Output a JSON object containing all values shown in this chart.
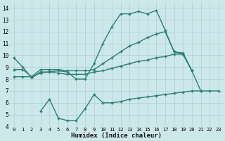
{
  "line1_x": [
    0,
    1,
    2,
    3,
    4,
    5,
    6,
    7,
    8,
    9,
    10,
    11,
    12,
    13,
    14,
    15,
    16,
    17,
    18,
    19,
    20,
    21
  ],
  "line1_y": [
    9.8,
    9.0,
    8.1,
    8.6,
    8.6,
    8.7,
    8.6,
    8.0,
    8.0,
    9.3,
    11.0,
    12.4,
    13.5,
    13.5,
    13.7,
    13.5,
    13.8,
    12.1,
    10.3,
    10.2,
    8.7,
    7.0
  ],
  "line2_x": [
    0,
    1,
    2,
    3,
    4,
    5,
    6,
    7,
    8,
    9,
    10,
    11,
    12,
    13,
    14,
    15,
    16,
    17,
    18,
    19,
    20
  ],
  "line2_y": [
    8.8,
    8.8,
    8.2,
    8.8,
    8.8,
    8.8,
    8.7,
    8.7,
    8.7,
    8.8,
    9.3,
    9.8,
    10.3,
    10.8,
    11.1,
    11.5,
    11.8,
    12.0,
    10.3,
    10.1,
    8.7
  ],
  "line3_x": [
    0,
    1,
    2,
    3,
    4,
    5,
    6,
    7,
    8,
    9,
    10,
    11,
    12,
    13,
    14,
    15,
    16,
    17,
    18,
    19,
    20
  ],
  "line3_y": [
    8.2,
    8.2,
    8.2,
    8.5,
    8.6,
    8.5,
    8.4,
    8.4,
    8.4,
    8.6,
    8.7,
    8.9,
    9.1,
    9.3,
    9.5,
    9.6,
    9.8,
    9.9,
    10.1,
    10.1,
    8.7
  ],
  "line4_x": [
    3,
    4,
    5,
    6,
    7,
    8,
    9,
    10,
    11,
    12,
    13,
    14,
    15,
    16,
    17,
    18,
    19,
    20,
    21,
    22,
    23
  ],
  "line4_y": [
    5.3,
    6.3,
    4.7,
    4.5,
    4.5,
    5.5,
    6.7,
    6.0,
    6.0,
    6.1,
    6.3,
    6.4,
    6.5,
    6.6,
    6.7,
    6.8,
    6.9,
    7.0,
    7.0,
    7.0,
    7.0
  ],
  "color": "#2d7d78",
  "bg_color": "#cde8eb",
  "grid_color": "#aecfd3",
  "xlabel": "Humidex (Indice chaleur)",
  "xlim": [
    -0.5,
    23.5
  ],
  "ylim": [
    4,
    14.5
  ],
  "yticks": [
    4,
    5,
    6,
    7,
    8,
    9,
    10,
    11,
    12,
    13,
    14
  ],
  "xticks": [
    0,
    1,
    2,
    3,
    4,
    5,
    6,
    7,
    8,
    9,
    10,
    11,
    12,
    13,
    14,
    15,
    16,
    17,
    18,
    19,
    20,
    21,
    22,
    23
  ],
  "marker": "+",
  "linewidth": 1.0,
  "markersize": 3.5,
  "markeredgewidth": 1.0
}
